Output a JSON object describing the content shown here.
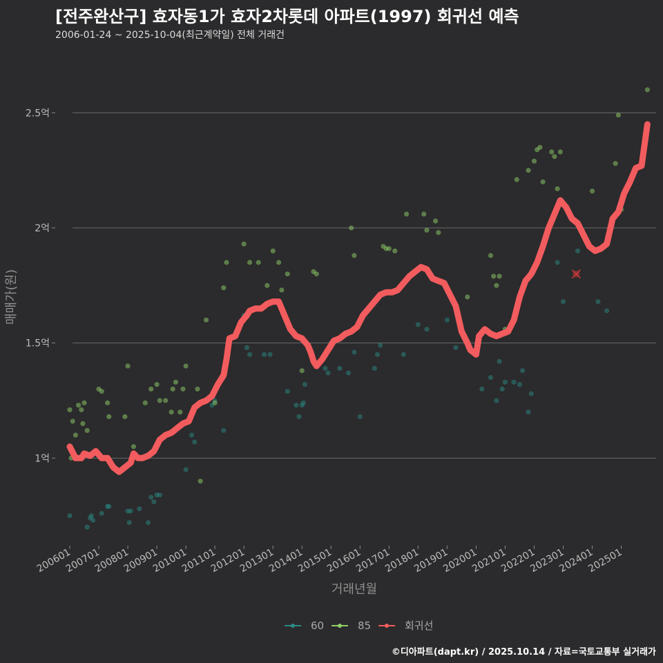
{
  "header": {
    "title": "[전주완산구] 효자동1가 효자2차롯데 아파트(1997) 회귀선 예측",
    "subtitle": "2006-01-24 ~ 2025-10-04(최근계약일) 전체 거래건"
  },
  "credit": "©디아파트(dapt.kr) / 2025.10.14 / 자료=국토교통부 실거래가",
  "colors": {
    "background": "#2b2a2c",
    "s60": "#2a8a84",
    "s85": "#8fd16a",
    "regression": "#f25c5e",
    "grid": "#6a6a6a"
  },
  "chart_data": {
    "type": "scatter",
    "xlabel": "거래년월",
    "ylabel": "매매가(원)",
    "xlim": [
      2005.5,
      2026.2
    ],
    "ylim": [
      0.62,
      2.78
    ],
    "y_ticks": [
      {
        "value": 1.0,
        "label": "1억"
      },
      {
        "value": 1.5,
        "label": "1.5억"
      },
      {
        "value": 2.0,
        "label": "2억"
      },
      {
        "value": 2.5,
        "label": "2.5억"
      }
    ],
    "x_ticks": [
      {
        "value": 2006,
        "label": "200601"
      },
      {
        "value": 2007,
        "label": "200701"
      },
      {
        "value": 2008,
        "label": "200801"
      },
      {
        "value": 2009,
        "label": "200901"
      },
      {
        "value": 2010,
        "label": "201001"
      },
      {
        "value": 2011,
        "label": "201101"
      },
      {
        "value": 2012,
        "label": "201201"
      },
      {
        "value": 2013,
        "label": "201301"
      },
      {
        "value": 2014,
        "label": "201401"
      },
      {
        "value": 2015,
        "label": "201501"
      },
      {
        "value": 2016,
        "label": "201601"
      },
      {
        "value": 2017,
        "label": "201701"
      },
      {
        "value": 2018,
        "label": "201801"
      },
      {
        "value": 2019,
        "label": "201901"
      },
      {
        "value": 2020,
        "label": "202001"
      },
      {
        "value": 2021,
        "label": "202101"
      },
      {
        "value": 2022,
        "label": "202201"
      },
      {
        "value": 2023,
        "label": "202301"
      },
      {
        "value": 2024,
        "label": "202401"
      },
      {
        "value": 2025,
        "label": "202501"
      }
    ],
    "legend": [
      {
        "key": "s60",
        "label": "60"
      },
      {
        "key": "s85",
        "label": "85"
      },
      {
        "key": "regression",
        "label": "회귀선"
      }
    ],
    "series": [
      {
        "name": "60",
        "points": [
          [
            2006.0,
            0.75
          ],
          [
            2006.6,
            0.7
          ],
          [
            2006.7,
            0.74
          ],
          [
            2006.75,
            0.75
          ],
          [
            2006.8,
            0.73
          ],
          [
            2007.1,
            0.76
          ],
          [
            2007.3,
            0.79
          ],
          [
            2007.35,
            0.79
          ],
          [
            2008.0,
            0.77
          ],
          [
            2008.05,
            0.72
          ],
          [
            2008.1,
            0.77
          ],
          [
            2008.4,
            0.78
          ],
          [
            2008.7,
            0.72
          ],
          [
            2008.8,
            0.83
          ],
          [
            2008.9,
            0.81
          ],
          [
            2009.0,
            0.84
          ],
          [
            2009.1,
            0.84
          ],
          [
            2010.0,
            0.95
          ],
          [
            2010.2,
            1.1
          ],
          [
            2010.3,
            1.07
          ],
          [
            2010.9,
            1.23
          ],
          [
            2011.0,
            1.25
          ],
          [
            2011.3,
            1.12
          ],
          [
            2012.0,
            1.62
          ],
          [
            2012.1,
            1.48
          ],
          [
            2012.2,
            1.45
          ],
          [
            2012.7,
            1.45
          ],
          [
            2012.9,
            1.45
          ],
          [
            2013.5,
            1.29
          ],
          [
            2013.8,
            1.23
          ],
          [
            2013.9,
            1.18
          ],
          [
            2014.0,
            1.23
          ],
          [
            2014.05,
            1.24
          ],
          [
            2014.1,
            1.32
          ],
          [
            2014.5,
            1.41
          ],
          [
            2014.8,
            1.39
          ],
          [
            2014.9,
            1.37
          ],
          [
            2015.0,
            1.5
          ],
          [
            2015.3,
            1.39
          ],
          [
            2015.6,
            1.37
          ],
          [
            2015.8,
            1.46
          ],
          [
            2016.0,
            1.18
          ],
          [
            2016.5,
            1.39
          ],
          [
            2016.6,
            1.45
          ],
          [
            2016.7,
            1.49
          ],
          [
            2017.5,
            1.45
          ],
          [
            2018.0,
            1.58
          ],
          [
            2018.3,
            1.56
          ],
          [
            2019.0,
            1.6
          ],
          [
            2019.3,
            1.48
          ],
          [
            2020.2,
            1.3
          ],
          [
            2020.5,
            1.35
          ],
          [
            2020.7,
            1.25
          ],
          [
            2020.8,
            1.42
          ],
          [
            2020.9,
            1.3
          ],
          [
            2021.0,
            1.33
          ],
          [
            2021.3,
            1.33
          ],
          [
            2021.5,
            1.32
          ],
          [
            2021.6,
            1.38
          ],
          [
            2021.8,
            1.2
          ],
          [
            2021.9,
            1.28
          ],
          [
            2022.8,
            1.85
          ],
          [
            2023.0,
            1.68
          ],
          [
            2023.5,
            1.9
          ],
          [
            2024.2,
            1.68
          ],
          [
            2024.5,
            1.64
          ]
        ]
      },
      {
        "name": "85",
        "points": [
          [
            2006.0,
            1.21
          ],
          [
            2006.05,
            1.0
          ],
          [
            2006.1,
            1.16
          ],
          [
            2006.2,
            1.1
          ],
          [
            2006.3,
            1.23
          ],
          [
            2006.4,
            1.21
          ],
          [
            2006.45,
            1.15
          ],
          [
            2006.5,
            1.24
          ],
          [
            2006.6,
            1.12
          ],
          [
            2007.0,
            1.3
          ],
          [
            2007.1,
            1.29
          ],
          [
            2007.3,
            1.24
          ],
          [
            2007.35,
            1.18
          ],
          [
            2007.9,
            1.18
          ],
          [
            2008.0,
            1.4
          ],
          [
            2008.2,
            1.05
          ],
          [
            2008.6,
            1.24
          ],
          [
            2008.8,
            1.3
          ],
          [
            2009.0,
            1.32
          ],
          [
            2009.1,
            1.25
          ],
          [
            2009.3,
            1.25
          ],
          [
            2009.5,
            1.2
          ],
          [
            2009.55,
            1.3
          ],
          [
            2009.65,
            1.33
          ],
          [
            2009.8,
            1.2
          ],
          [
            2009.9,
            1.3
          ],
          [
            2010.0,
            1.4
          ],
          [
            2010.4,
            1.3
          ],
          [
            2010.5,
            0.9
          ],
          [
            2010.7,
            1.6
          ],
          [
            2011.0,
            1.24
          ],
          [
            2011.3,
            1.74
          ],
          [
            2011.4,
            1.85
          ],
          [
            2012.0,
            1.93
          ],
          [
            2012.2,
            1.85
          ],
          [
            2012.5,
            1.85
          ],
          [
            2012.8,
            1.75
          ],
          [
            2013.0,
            1.9
          ],
          [
            2013.2,
            1.85
          ],
          [
            2013.3,
            1.73
          ],
          [
            2013.5,
            1.8
          ],
          [
            2014.0,
            1.38
          ],
          [
            2014.4,
            1.81
          ],
          [
            2014.5,
            1.8
          ],
          [
            2015.7,
            2.0
          ],
          [
            2015.8,
            1.88
          ],
          [
            2016.8,
            1.92
          ],
          [
            2016.9,
            1.91
          ],
          [
            2017.0,
            1.91
          ],
          [
            2017.2,
            1.9
          ],
          [
            2017.6,
            2.06
          ],
          [
            2018.2,
            2.06
          ],
          [
            2018.3,
            1.99
          ],
          [
            2018.6,
            2.03
          ],
          [
            2018.7,
            1.98
          ],
          [
            2019.7,
            1.7
          ],
          [
            2020.5,
            1.88
          ],
          [
            2020.6,
            1.79
          ],
          [
            2020.7,
            1.75
          ],
          [
            2020.8,
            1.79
          ],
          [
            2021.0,
            1.56
          ],
          [
            2021.4,
            2.21
          ],
          [
            2021.8,
            2.25
          ],
          [
            2022.0,
            2.29
          ],
          [
            2022.1,
            2.34
          ],
          [
            2022.2,
            2.35
          ],
          [
            2022.3,
            2.2
          ],
          [
            2022.6,
            2.33
          ],
          [
            2022.7,
            2.31
          ],
          [
            2022.8,
            2.17
          ],
          [
            2022.9,
            2.33
          ],
          [
            2023.0,
            2.1
          ],
          [
            2024.0,
            2.16
          ],
          [
            2024.8,
            2.28
          ],
          [
            2024.9,
            2.49
          ],
          [
            2025.0,
            2.08
          ],
          [
            2025.9,
            2.6
          ]
        ]
      },
      {
        "name": "회귀선",
        "points": [
          [
            2006.0,
            1.05
          ],
          [
            2006.2,
            1.0
          ],
          [
            2006.4,
            1.0
          ],
          [
            2006.5,
            1.02
          ],
          [
            2006.7,
            1.01
          ],
          [
            2006.9,
            1.03
          ],
          [
            2007.1,
            1.0
          ],
          [
            2007.3,
            1.0
          ],
          [
            2007.5,
            0.96
          ],
          [
            2007.7,
            0.94
          ],
          [
            2007.9,
            0.96
          ],
          [
            2008.1,
            0.98
          ],
          [
            2008.2,
            1.02
          ],
          [
            2008.35,
            1.0
          ],
          [
            2008.5,
            1.0
          ],
          [
            2008.7,
            1.01
          ],
          [
            2008.9,
            1.03
          ],
          [
            2009.1,
            1.08
          ],
          [
            2009.3,
            1.1
          ],
          [
            2009.5,
            1.11
          ],
          [
            2009.7,
            1.13
          ],
          [
            2009.9,
            1.15
          ],
          [
            2010.1,
            1.16
          ],
          [
            2010.3,
            1.22
          ],
          [
            2010.5,
            1.24
          ],
          [
            2010.7,
            1.25
          ],
          [
            2010.9,
            1.27
          ],
          [
            2011.1,
            1.32
          ],
          [
            2011.3,
            1.36
          ],
          [
            2011.4,
            1.43
          ],
          [
            2011.5,
            1.52
          ],
          [
            2011.7,
            1.53
          ],
          [
            2011.9,
            1.59
          ],
          [
            2012.1,
            1.62
          ],
          [
            2012.2,
            1.64
          ],
          [
            2012.4,
            1.65
          ],
          [
            2012.6,
            1.65
          ],
          [
            2012.8,
            1.67
          ],
          [
            2013.0,
            1.68
          ],
          [
            2013.2,
            1.68
          ],
          [
            2013.4,
            1.62
          ],
          [
            2013.6,
            1.56
          ],
          [
            2013.8,
            1.53
          ],
          [
            2014.0,
            1.52
          ],
          [
            2014.2,
            1.49
          ],
          [
            2014.3,
            1.46
          ],
          [
            2014.4,
            1.42
          ],
          [
            2014.5,
            1.4
          ],
          [
            2014.7,
            1.43
          ],
          [
            2014.9,
            1.47
          ],
          [
            2015.1,
            1.51
          ],
          [
            2015.3,
            1.52
          ],
          [
            2015.5,
            1.54
          ],
          [
            2015.7,
            1.55
          ],
          [
            2015.9,
            1.57
          ],
          [
            2016.1,
            1.62
          ],
          [
            2016.3,
            1.65
          ],
          [
            2016.5,
            1.68
          ],
          [
            2016.7,
            1.71
          ],
          [
            2016.9,
            1.72
          ],
          [
            2017.1,
            1.72
          ],
          [
            2017.3,
            1.73
          ],
          [
            2017.5,
            1.76
          ],
          [
            2017.7,
            1.79
          ],
          [
            2017.9,
            1.81
          ],
          [
            2018.1,
            1.83
          ],
          [
            2018.3,
            1.82
          ],
          [
            2018.5,
            1.78
          ],
          [
            2018.7,
            1.77
          ],
          [
            2018.9,
            1.76
          ],
          [
            2019.1,
            1.71
          ],
          [
            2019.3,
            1.66
          ],
          [
            2019.5,
            1.55
          ],
          [
            2019.7,
            1.5
          ],
          [
            2019.8,
            1.47
          ],
          [
            2020.0,
            1.45
          ],
          [
            2020.1,
            1.53
          ],
          [
            2020.3,
            1.56
          ],
          [
            2020.5,
            1.54
          ],
          [
            2020.7,
            1.53
          ],
          [
            2020.9,
            1.54
          ],
          [
            2021.1,
            1.55
          ],
          [
            2021.3,
            1.6
          ],
          [
            2021.5,
            1.7
          ],
          [
            2021.7,
            1.77
          ],
          [
            2021.9,
            1.8
          ],
          [
            2022.1,
            1.85
          ],
          [
            2022.3,
            1.92
          ],
          [
            2022.5,
            2.0
          ],
          [
            2022.7,
            2.06
          ],
          [
            2022.9,
            2.12
          ],
          [
            2023.1,
            2.09
          ],
          [
            2023.3,
            2.04
          ],
          [
            2023.5,
            2.02
          ],
          [
            2023.7,
            1.97
          ],
          [
            2023.9,
            1.92
          ],
          [
            2024.1,
            1.9
          ],
          [
            2024.3,
            1.91
          ],
          [
            2024.5,
            1.93
          ],
          [
            2024.7,
            2.04
          ],
          [
            2024.9,
            2.07
          ],
          [
            2025.1,
            2.15
          ],
          [
            2025.3,
            2.2
          ],
          [
            2025.5,
            2.26
          ],
          [
            2025.7,
            2.27
          ],
          [
            2025.9,
            2.45
          ]
        ]
      }
    ],
    "marker": {
      "x": 2023.45,
      "y": 1.8,
      "label": "x"
    }
  }
}
